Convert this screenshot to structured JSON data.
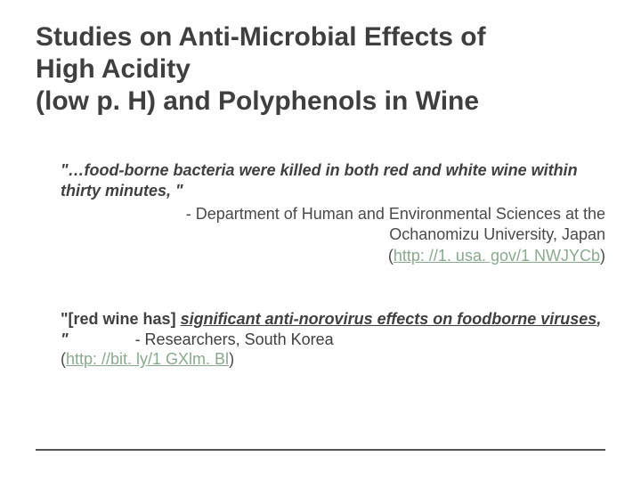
{
  "title_line1": "Studies on Anti-Microbial Effects of",
  "title_line2": "High Acidity",
  "title_line3": "(low p. H) and Polyphenols in Wine",
  "quote1": "\"…food-borne bacteria were killed in both red and white wine within thirty minutes, \"",
  "attrib1_prefix": "-   Department of Human and Environmental Sciences at the Ochanomizu University, Japan",
  "link1_open": "(",
  "link1_text": "http: //1. usa. gov/1 NWJYCb",
  "link1_close": ")",
  "quote2_lead": "\"[red wine has] ",
  "quote2_em": "significant anti-norovirus effects on foodborne viruses",
  "quote2_tail": ", \"",
  "attrib2": "- Researchers, South Korea",
  "link2_open": "(",
  "link2_text": "http: //bit. ly/1 GXlm. Bl",
  "link2_close": ")",
  "colors": {
    "text": "#4a4a4a",
    "title": "#3f3f3f",
    "link": "#8aa98f",
    "rule": "#555555",
    "background": "#ffffff"
  },
  "fontsizes": {
    "title": 30,
    "body": 18
  }
}
